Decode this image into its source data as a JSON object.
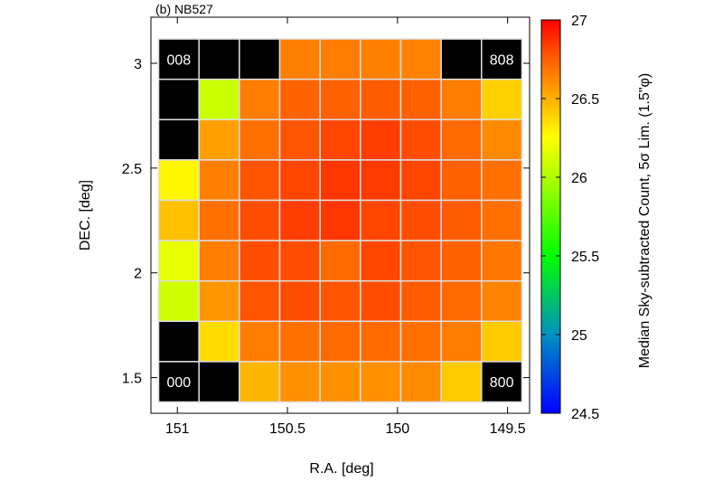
{
  "chart_data": {
    "type": "heatmap",
    "title": "(b) NB527",
    "xlabel": "R.A. [deg]",
    "ylabel": "DEC. [deg]",
    "x_range": [
      151.12,
      149.4
    ],
    "y_range": [
      1.33,
      3.22
    ],
    "x_ticks": [
      {
        "value": 151,
        "label": "151"
      },
      {
        "value": 150.5,
        "label": "150.5"
      },
      {
        "value": 150,
        "label": "150"
      },
      {
        "value": 149.5,
        "label": "149.5"
      }
    ],
    "y_ticks": [
      {
        "value": 1.5,
        "label": "1.5"
      },
      {
        "value": 2,
        "label": "2"
      },
      {
        "value": 2.5,
        "label": "2.5"
      },
      {
        "value": 3,
        "label": "3"
      }
    ],
    "grid": {
      "cols": 9,
      "rows": 9,
      "ra_start": 151.085,
      "ra_end": 149.435,
      "dec_start": 1.384,
      "dec_end": 3.116,
      "cell_border": "#dddddd",
      "missing_color": "#000000",
      "values_top_to_bottom": [
        [
          null,
          null,
          null,
          26.65,
          26.66,
          26.65,
          26.64,
          null,
          null
        ],
        [
          null,
          26.08,
          26.66,
          26.74,
          26.75,
          26.76,
          26.75,
          26.66,
          26.4
        ],
        [
          null,
          26.55,
          26.7,
          26.78,
          26.82,
          26.84,
          26.8,
          26.72,
          26.62
        ],
        [
          26.28,
          26.65,
          26.78,
          26.82,
          26.86,
          26.85,
          26.82,
          26.75,
          26.7
        ],
        [
          26.45,
          26.7,
          26.8,
          26.84,
          26.86,
          26.82,
          26.8,
          26.76,
          26.7
        ],
        [
          26.18,
          26.66,
          26.8,
          26.8,
          26.72,
          26.82,
          26.78,
          26.74,
          26.68
        ],
        [
          26.1,
          26.58,
          26.78,
          26.8,
          26.78,
          26.8,
          26.76,
          26.72,
          26.64
        ],
        [
          null,
          26.36,
          26.66,
          26.7,
          26.72,
          26.72,
          26.7,
          26.66,
          26.42
        ],
        [
          null,
          null,
          26.48,
          26.6,
          26.6,
          26.6,
          26.62,
          26.42,
          null
        ]
      ],
      "labels": [
        {
          "row": 0,
          "col": 0,
          "text": "008"
        },
        {
          "row": 0,
          "col": 8,
          "text": "808"
        },
        {
          "row": 8,
          "col": 0,
          "text": "000"
        },
        {
          "row": 8,
          "col": 8,
          "text": "800"
        }
      ]
    },
    "colorbar": {
      "label": "Median Sky-subtracted Count, 5σ Lim. (1.5\"φ)",
      "min": 24.5,
      "max": 27,
      "ticks": [
        {
          "value": 27,
          "label": "27"
        },
        {
          "value": 26.5,
          "label": "26.5"
        },
        {
          "value": 26,
          "label": "26"
        },
        {
          "value": 25.5,
          "label": "25.5"
        },
        {
          "value": 25,
          "label": "25"
        },
        {
          "value": 24.5,
          "label": "24.5"
        }
      ],
      "stops": [
        {
          "value": 24.5,
          "color": "#0000ff"
        },
        {
          "value": 25.0,
          "color": "#0090c0"
        },
        {
          "value": 25.5,
          "color": "#00ff00"
        },
        {
          "value": 26.0,
          "color": "#b0ff00"
        },
        {
          "value": 26.25,
          "color": "#ffff00"
        },
        {
          "value": 26.5,
          "color": "#ffb000"
        },
        {
          "value": 26.75,
          "color": "#ff6000"
        },
        {
          "value": 27.0,
          "color": "#ff0000"
        }
      ]
    }
  }
}
